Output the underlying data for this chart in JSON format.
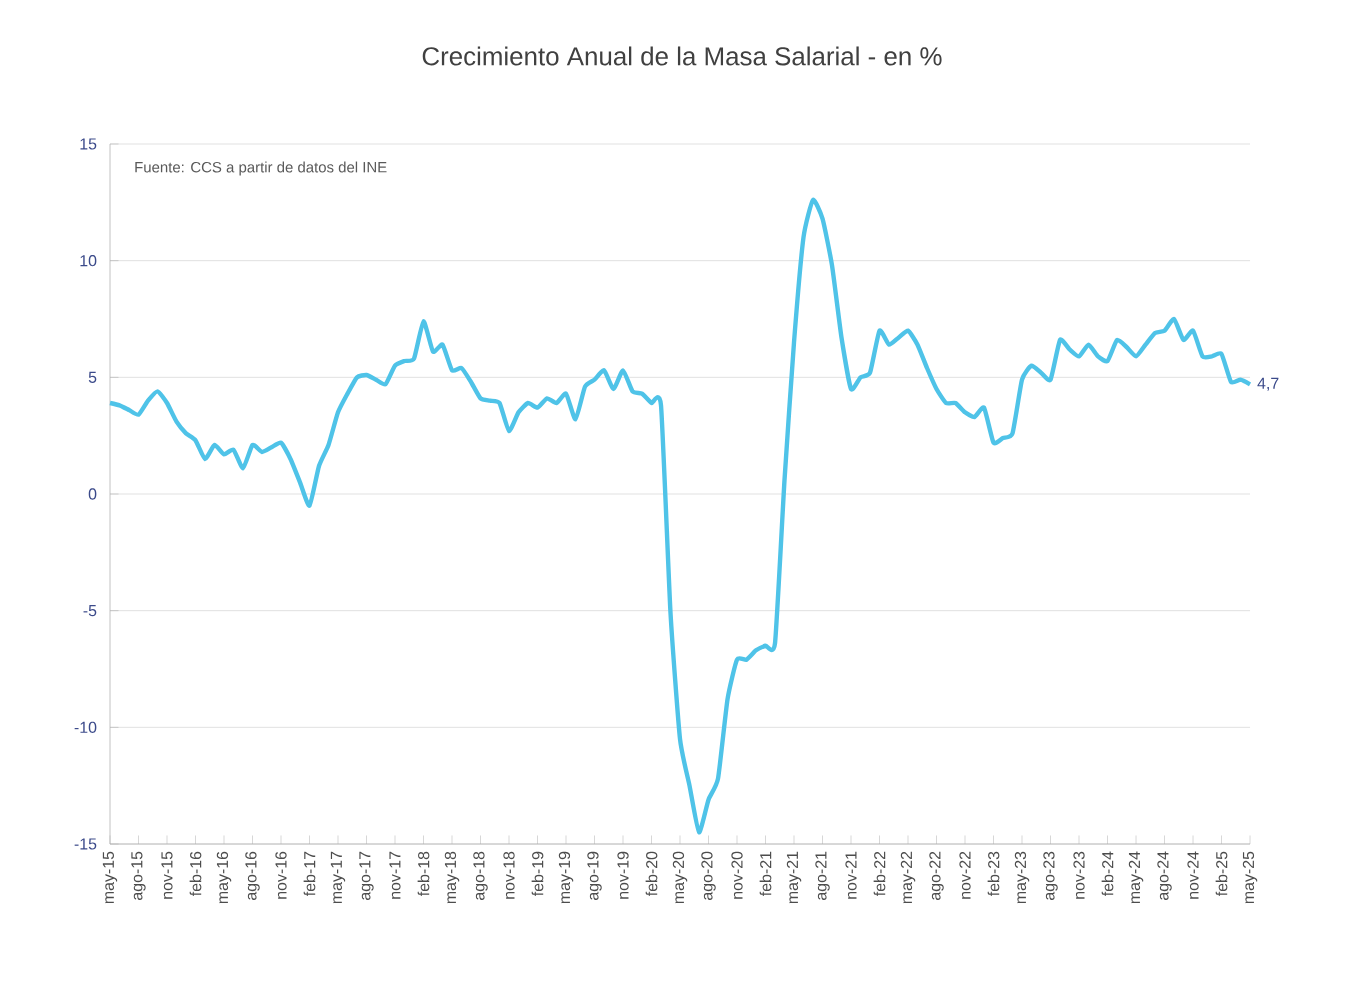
{
  "chart_data": {
    "type": "line",
    "title": "Crecimiento Anual de la Masa Salarial - en %",
    "categories": [
      "may-15",
      null,
      null,
      "ago-15",
      null,
      null,
      "nov-15",
      null,
      null,
      "feb-16",
      null,
      null,
      "may-16",
      null,
      null,
      "ago-16",
      null,
      null,
      "nov-16",
      null,
      null,
      "feb-17",
      null,
      null,
      "may-17",
      null,
      null,
      "ago-17",
      null,
      null,
      "nov-17",
      null,
      null,
      "feb-18",
      null,
      null,
      "may-18",
      null,
      null,
      "ago-18",
      null,
      null,
      "nov-18",
      null,
      null,
      "feb-19",
      null,
      null,
      "may-19",
      null,
      null,
      "ago-19",
      null,
      null,
      "nov-19",
      null,
      null,
      "feb-20",
      null,
      null,
      "may-20",
      null,
      null,
      "ago-20",
      null,
      null,
      "nov-20",
      null,
      null,
      "feb-21",
      null,
      null,
      "may-21",
      null,
      null,
      "ago-21",
      null,
      null,
      "nov-21",
      null,
      null,
      "feb-22",
      null,
      null,
      "may-22",
      null,
      null,
      "ago-22",
      null,
      null,
      "nov-22",
      null,
      null,
      "feb-23",
      null,
      null,
      "may-23",
      null,
      null,
      "ago-23",
      null,
      null,
      "nov-23",
      null,
      null,
      "feb-24",
      null,
      null,
      "may-24",
      null,
      null,
      "ago-24",
      null,
      null,
      "nov-24",
      null,
      null,
      "feb-25",
      null,
      null,
      "may-25"
    ],
    "series": [
      {
        "color": "#4fc3e8",
        "values": [
          3.9,
          3.8,
          3.6,
          3.4,
          4.0,
          4.4,
          3.9,
          3.1,
          2.6,
          2.3,
          1.5,
          2.1,
          1.7,
          1.9,
          1.1,
          2.1,
          1.8,
          2.0,
          2.2,
          1.5,
          0.5,
          -0.5,
          1.2,
          2.1,
          3.5,
          4.3,
          5.0,
          5.1,
          4.9,
          4.7,
          5.5,
          5.7,
          5.8,
          7.4,
          6.1,
          6.4,
          5.3,
          5.4,
          4.8,
          4.1,
          4.0,
          3.9,
          2.7,
          3.5,
          3.9,
          3.7,
          4.1,
          3.9,
          4.3,
          3.2,
          4.6,
          4.9,
          5.3,
          4.5,
          5.3,
          4.4,
          4.3,
          3.9,
          3.8,
          -5.1,
          -10.5,
          -12.5,
          -14.5,
          -13.1,
          -12.2,
          -8.8,
          -7.1,
          -7.1,
          -6.7,
          -6.5,
          -6.4,
          0.6,
          6.5,
          11.0,
          12.6,
          11.8,
          9.8,
          6.7,
          4.5,
          5.0,
          5.2,
          7.0,
          6.4,
          6.7,
          7.0,
          6.4,
          5.4,
          4.5,
          3.9,
          3.9,
          3.5,
          3.3,
          3.7,
          2.2,
          2.4,
          2.6,
          4.9,
          5.5,
          5.2,
          4.9,
          6.6,
          6.2,
          5.9,
          6.4,
          5.9,
          5.7,
          6.6,
          6.3,
          5.9,
          6.4,
          6.9,
          7.0,
          7.5,
          6.6,
          7.0,
          5.9,
          5.9,
          6.0,
          4.8,
          4.9,
          4.7
        ]
      }
    ],
    "ylim": [
      -15,
      15
    ],
    "yticks": [
      -15,
      -10,
      -5,
      0,
      5,
      10,
      15
    ],
    "grid": "y",
    "marker": "none",
    "line_style": "solid",
    "annotations": [
      "Fuente: CCS a partir de datos del INE",
      {
        "text": "4,7",
        "x": "may-25",
        "y": 4.7
      }
    ]
  }
}
